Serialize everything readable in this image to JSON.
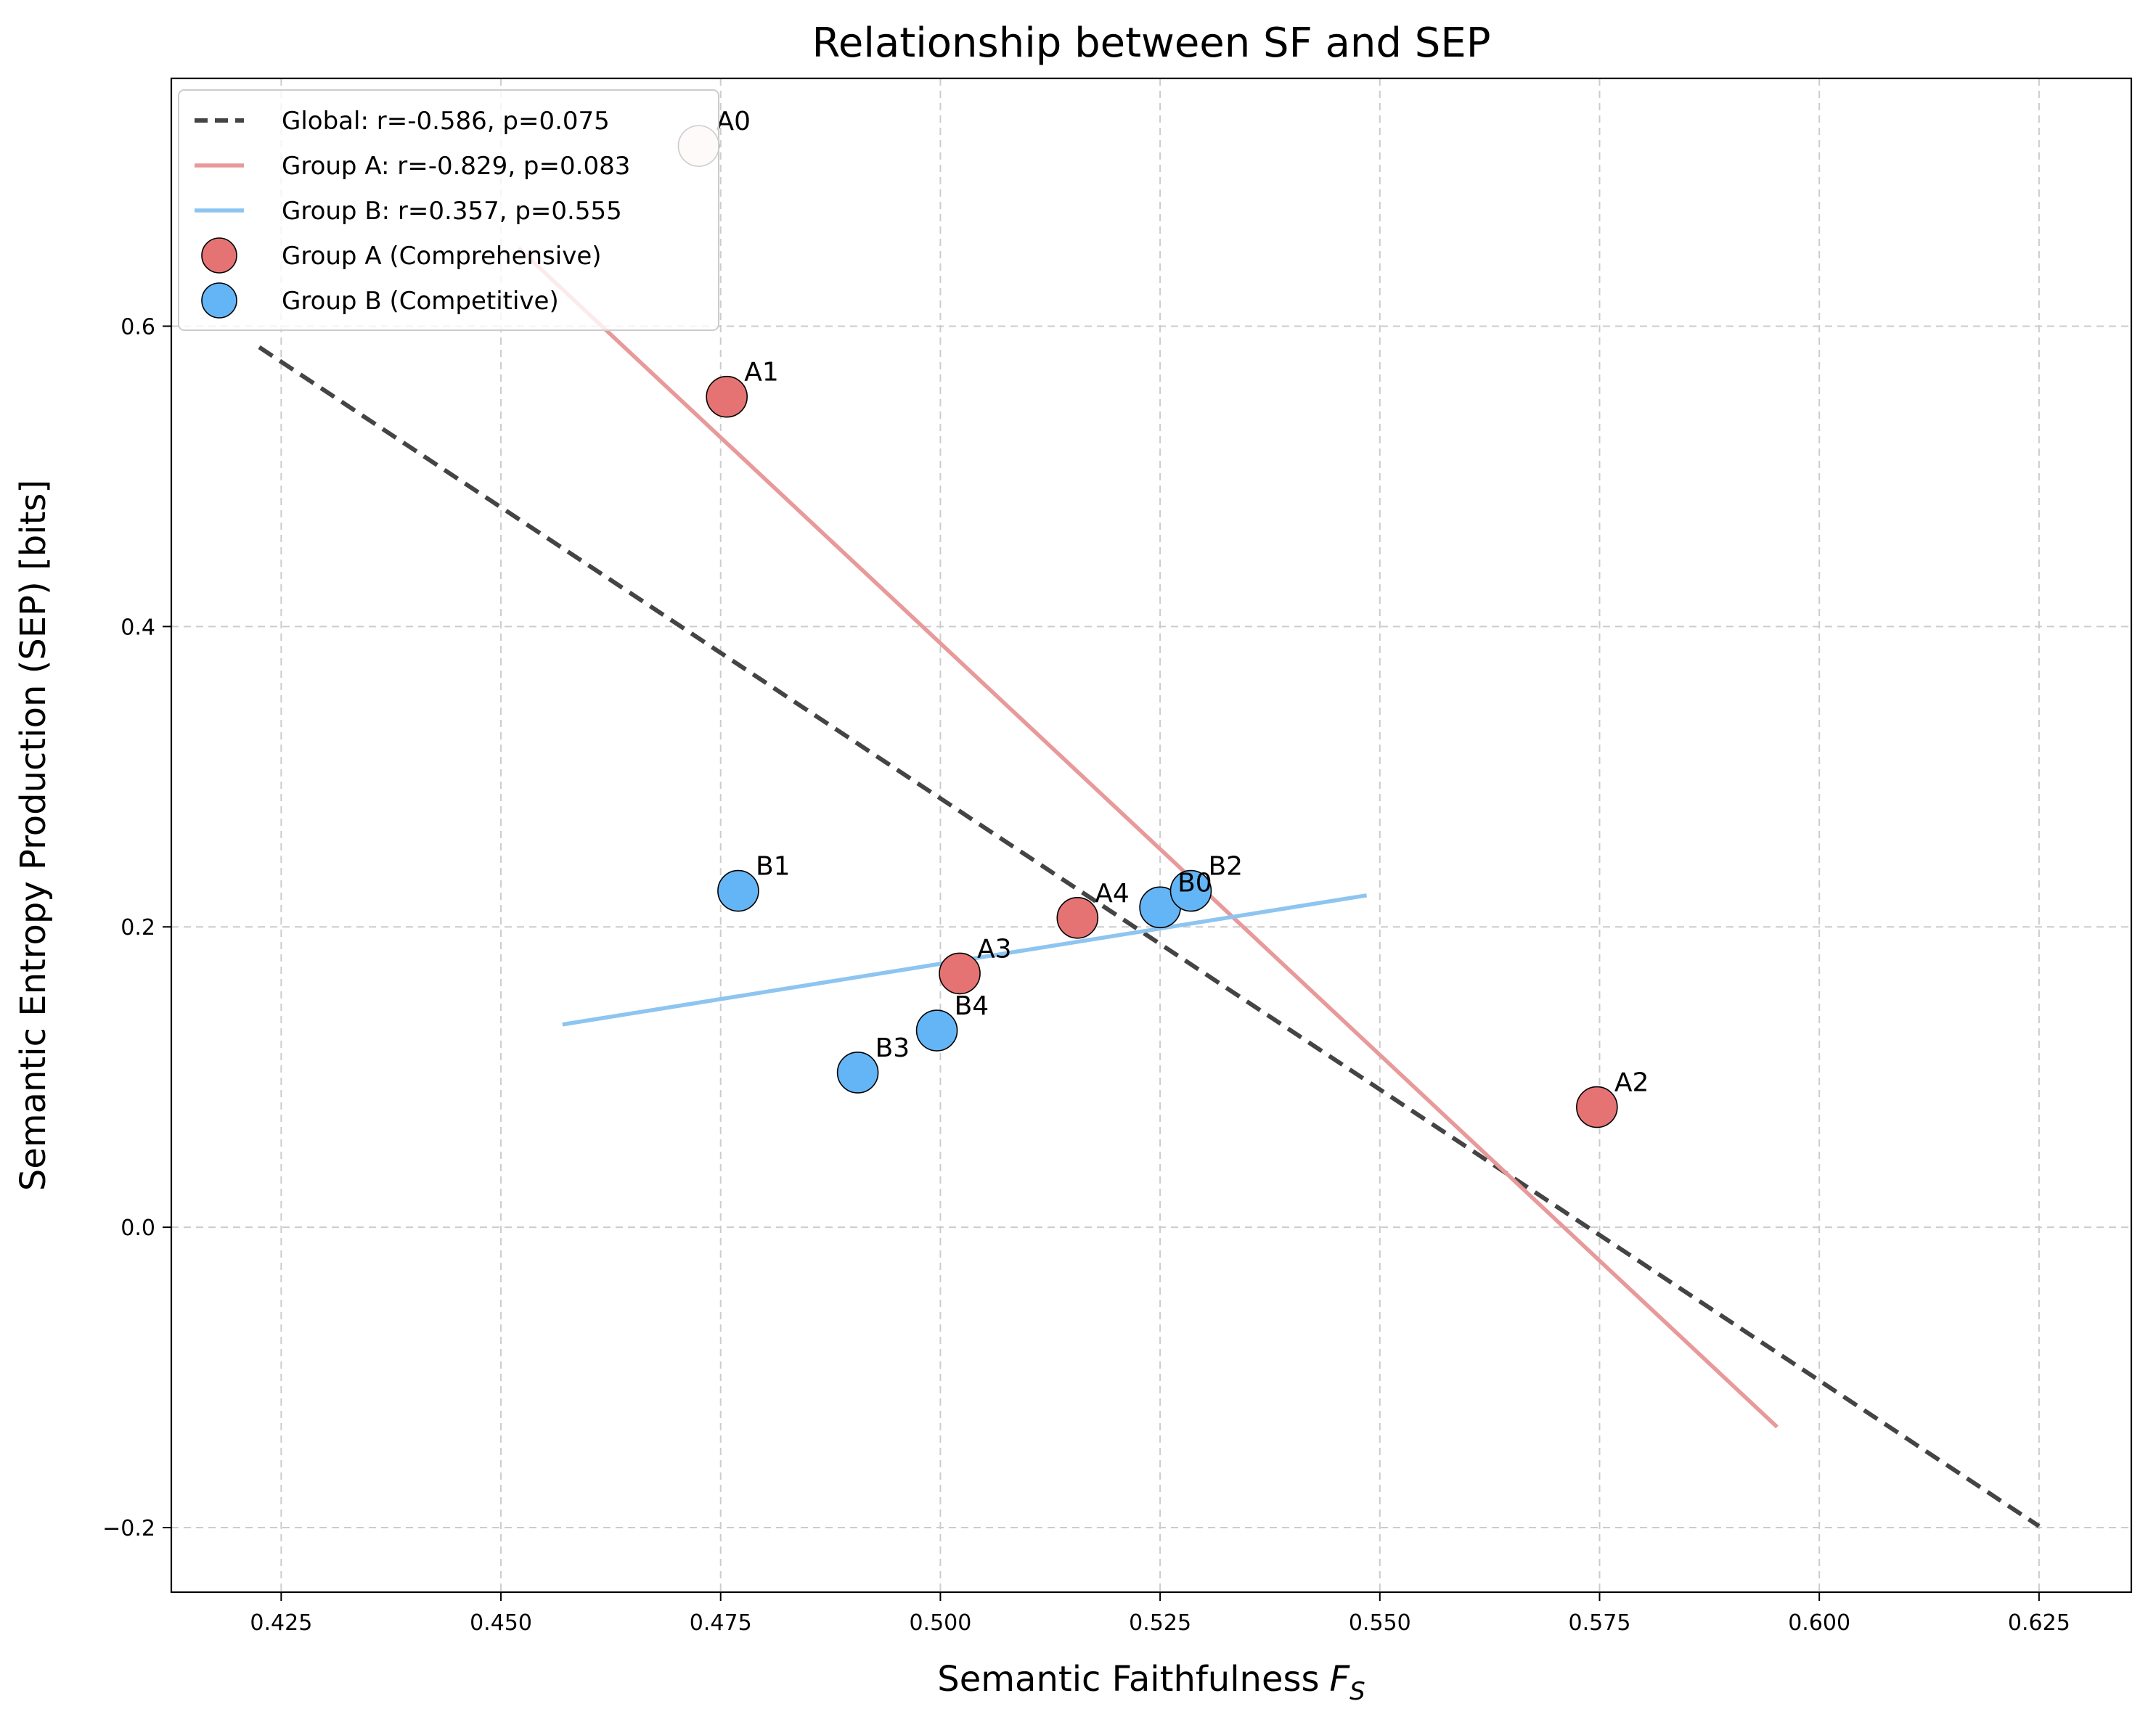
{
  "chart_data": {
    "type": "scatter",
    "title": "Relationship between SF and SEP",
    "xlabel": "Semantic Faithfulness",
    "xlabel_symbol": "F",
    "xlabel_subscript": "S",
    "ylabel": "Semantic Entropy Production (SEP) [bits]",
    "xlim": [
      0.4125,
      0.6355
    ],
    "ylim": [
      -0.243,
      0.765
    ],
    "xticks": [
      0.425,
      0.45,
      0.475,
      0.5,
      0.525,
      0.55,
      0.575,
      0.6,
      0.625
    ],
    "xtick_labels": [
      "0.425",
      "0.450",
      "0.475",
      "0.500",
      "0.525",
      "0.550",
      "0.575",
      "0.600",
      "0.625"
    ],
    "yticks": [
      -0.2,
      0.0,
      0.2,
      0.4,
      0.6
    ],
    "ytick_labels": [
      "−0.2",
      "0.0",
      "0.2",
      "0.4",
      "0.6"
    ],
    "grid": true,
    "legend_position": "top-left",
    "colors": {
      "global_line": "#444444",
      "group_a_line": "#e8999a",
      "group_b_line": "#8ec5f0",
      "group_a_point": "#e57373",
      "group_b_point": "#64b5f6",
      "grid": "#cccccc"
    },
    "lines": [
      {
        "name": "Global: r=-0.586, p=0.075",
        "style": "dashed",
        "color_key": "global_line",
        "x": [
          0.4225,
          0.625
        ],
        "y": [
          0.586,
          -0.199
        ]
      },
      {
        "name": "Group A: r=-0.829, p=0.083",
        "style": "solid",
        "color_key": "group_a_line",
        "x": [
          0.452,
          0.5952
        ],
        "y": [
          0.652,
          -0.133
        ]
      },
      {
        "name": "Group B: r=0.357, p=0.555",
        "style": "solid",
        "color_key": "group_b_line",
        "x": [
          0.457,
          0.5485
        ],
        "y": [
          0.135,
          0.221
        ]
      }
    ],
    "series": [
      {
        "name": "Group A (Comprehensive)",
        "color_key": "group_a_point",
        "points": [
          {
            "label": "A0",
            "x": 0.4725,
            "y": 0.72
          },
          {
            "label": "A1",
            "x": 0.4757,
            "y": 0.553
          },
          {
            "label": "A2",
            "x": 0.5747,
            "y": 0.08
          },
          {
            "label": "A3",
            "x": 0.5022,
            "y": 0.169
          },
          {
            "label": "A4",
            "x": 0.5156,
            "y": 0.206
          }
        ]
      },
      {
        "name": "Group B (Competitive)",
        "color_key": "group_b_point",
        "points": [
          {
            "label": "B0",
            "x": 0.525,
            "y": 0.213
          },
          {
            "label": "B1",
            "x": 0.477,
            "y": 0.224
          },
          {
            "label": "B2",
            "x": 0.5285,
            "y": 0.224
          },
          {
            "label": "B3",
            "x": 0.4906,
            "y": 0.103
          },
          {
            "label": "B4",
            "x": 0.4996,
            "y": 0.131
          }
        ]
      }
    ]
  }
}
